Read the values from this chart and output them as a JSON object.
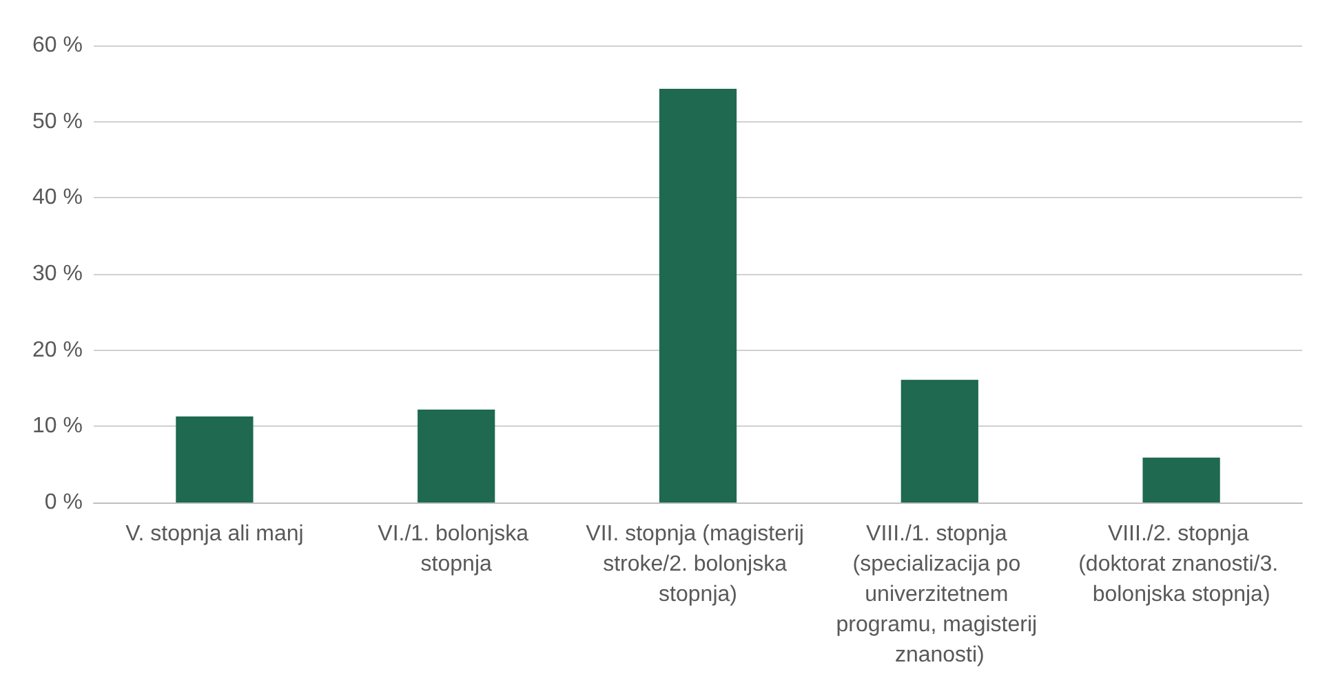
{
  "chart_data": {
    "type": "bar",
    "categories": [
      "V. stopnja ali manj",
      "VI./1. bolonjska stopnja",
      "VII. stopnja (magisterij stroke/2. bolonjska stopnja)",
      "VIII./1. stopnja (specializacija po univerzitetnem programu, magisterij znanosti)",
      "VIII./2. stopnja (doktorat znanosti/3. bolonjska stopnja)"
    ],
    "values": [
      11.3,
      12.2,
      54.3,
      16.1,
      5.9
    ],
    "color": "#1e6950",
    "ylim": [
      0,
      60
    ],
    "yticks": [
      {
        "value": 0,
        "label": "0 %"
      },
      {
        "value": 10,
        "label": "10 %"
      },
      {
        "value": 20,
        "label": "20 %"
      },
      {
        "value": 30,
        "label": "30 %"
      },
      {
        "value": 40,
        "label": "40 %"
      },
      {
        "value": 50,
        "label": "50 %"
      },
      {
        "value": 60,
        "label": "60 %"
      }
    ],
    "grid": "y"
  }
}
